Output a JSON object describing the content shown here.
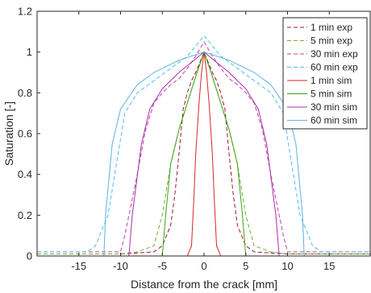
{
  "chart_data": {
    "type": "line",
    "title": "",
    "xlabel": "Distance from the crack [mm]",
    "ylabel": "Saturation [-]",
    "xlim": [
      -20,
      20
    ],
    "ylim": [
      0,
      1.2
    ],
    "xticks": [
      -15,
      -10,
      -5,
      0,
      5,
      10,
      15
    ],
    "xtick_labels": [
      "-15",
      "-10",
      "-5",
      "0",
      "5",
      "10",
      "15"
    ],
    "yticks": [
      0,
      0.2,
      0.4,
      0.6,
      0.8,
      1,
      1.2
    ],
    "ytick_labels": [
      "0",
      "0.2",
      "0.4",
      "0.6",
      "0.8",
      "1",
      "1.2"
    ],
    "grid": false,
    "legend_position": "top-right",
    "series": [
      {
        "name": "1 min exp",
        "color": "#a2142f",
        "dash": "dashed",
        "points": [
          [
            -20,
            0.01
          ],
          [
            -15,
            0.01
          ],
          [
            -10,
            0.01
          ],
          [
            -8,
            0.015
          ],
          [
            -6,
            0.02
          ],
          [
            -5,
            0.05
          ],
          [
            -4,
            0.15
          ],
          [
            -3.5,
            0.3
          ],
          [
            -3,
            0.5
          ],
          [
            -2.5,
            0.72
          ],
          [
            -2,
            0.8
          ],
          [
            -1.5,
            0.86
          ],
          [
            -1,
            0.9
          ],
          [
            -0.5,
            0.95
          ],
          [
            0,
            1.0
          ],
          [
            0.5,
            0.95
          ],
          [
            1,
            0.9
          ],
          [
            1.5,
            0.86
          ],
          [
            2,
            0.8
          ],
          [
            2.5,
            0.72
          ],
          [
            3,
            0.5
          ],
          [
            3.5,
            0.3
          ],
          [
            4,
            0.15
          ],
          [
            5,
            0.05
          ],
          [
            6,
            0.02
          ],
          [
            8,
            0.015
          ],
          [
            10,
            0.01
          ],
          [
            15,
            0.01
          ],
          [
            20,
            0.01
          ]
        ]
      },
      {
        "name": "5 min exp",
        "color": "#77ac30",
        "dash": "dashed",
        "points": [
          [
            -20,
            0.01
          ],
          [
            -15,
            0.01
          ],
          [
            -10,
            0.01
          ],
          [
            -8,
            0.02
          ],
          [
            -6,
            0.05
          ],
          [
            -5,
            0.2
          ],
          [
            -4,
            0.45
          ],
          [
            -3,
            0.62
          ],
          [
            -2,
            0.75
          ],
          [
            -1,
            0.88
          ],
          [
            0,
            1.0
          ],
          [
            1,
            0.88
          ],
          [
            2,
            0.75
          ],
          [
            3,
            0.62
          ],
          [
            4,
            0.45
          ],
          [
            5,
            0.2
          ],
          [
            6,
            0.05
          ],
          [
            8,
            0.02
          ],
          [
            10,
            0.01
          ],
          [
            15,
            0.01
          ],
          [
            20,
            0.01
          ]
        ]
      },
      {
        "name": "30 min exp",
        "color": "#c040a0",
        "dash": "dashed",
        "points": [
          [
            -20,
            0.02
          ],
          [
            -15,
            0.02
          ],
          [
            -10,
            0.02
          ],
          [
            -9.5,
            0.1
          ],
          [
            -8,
            0.4
          ],
          [
            -7,
            0.62
          ],
          [
            -6,
            0.75
          ],
          [
            -5,
            0.8
          ],
          [
            -4,
            0.84
          ],
          [
            -3,
            0.87
          ],
          [
            -2,
            0.92
          ],
          [
            -1,
            0.98
          ],
          [
            0,
            1.05
          ],
          [
            1,
            0.98
          ],
          [
            2,
            0.92
          ],
          [
            3,
            0.87
          ],
          [
            4,
            0.84
          ],
          [
            5,
            0.8
          ],
          [
            6,
            0.75
          ],
          [
            7,
            0.62
          ],
          [
            8,
            0.4
          ],
          [
            9.5,
            0.1
          ],
          [
            10,
            0.02
          ],
          [
            15,
            0.02
          ],
          [
            20,
            0.02
          ]
        ]
      },
      {
        "name": "60 min exp",
        "color": "#4dbeee",
        "dash": "dashed",
        "points": [
          [
            -20,
            0.02
          ],
          [
            -14,
            0.02
          ],
          [
            -13,
            0.05
          ],
          [
            -11.5,
            0.2
          ],
          [
            -10.5,
            0.45
          ],
          [
            -9.5,
            0.7
          ],
          [
            -8,
            0.8
          ],
          [
            -6,
            0.86
          ],
          [
            -4,
            0.92
          ],
          [
            -2,
            0.98
          ],
          [
            0,
            1.08
          ],
          [
            2,
            0.98
          ],
          [
            4,
            0.92
          ],
          [
            6,
            0.86
          ],
          [
            8,
            0.8
          ],
          [
            9.5,
            0.7
          ],
          [
            10.5,
            0.45
          ],
          [
            11.5,
            0.2
          ],
          [
            13,
            0.05
          ],
          [
            14,
            0.02
          ],
          [
            20,
            0.02
          ]
        ]
      },
      {
        "name": "1 min sim",
        "color": "#d62728",
        "dash": "solid",
        "points": [
          [
            -20,
            0
          ],
          [
            -2,
            0
          ],
          [
            -1.5,
            0.05
          ],
          [
            -1.2,
            0.3
          ],
          [
            -1,
            0.5
          ],
          [
            -0.6,
            0.75
          ],
          [
            -0.3,
            0.9
          ],
          [
            0,
            1.0
          ],
          [
            0.3,
            0.9
          ],
          [
            0.6,
            0.75
          ],
          [
            1,
            0.5
          ],
          [
            1.2,
            0.3
          ],
          [
            1.5,
            0.05
          ],
          [
            2,
            0
          ],
          [
            20,
            0
          ]
        ]
      },
      {
        "name": "5 min sim",
        "color": "#3aa415",
        "dash": "solid",
        "points": [
          [
            -20,
            0
          ],
          [
            -5,
            0
          ],
          [
            -4.6,
            0.2
          ],
          [
            -4,
            0.45
          ],
          [
            -3,
            0.62
          ],
          [
            -2,
            0.75
          ],
          [
            -1,
            0.88
          ],
          [
            0,
            1.0
          ],
          [
            1,
            0.88
          ],
          [
            2,
            0.75
          ],
          [
            3,
            0.62
          ],
          [
            4,
            0.45
          ],
          [
            4.6,
            0.2
          ],
          [
            5,
            0
          ],
          [
            20,
            0
          ]
        ]
      },
      {
        "name": "30 min sim",
        "color": "#a830a8",
        "dash": "solid",
        "points": [
          [
            -20,
            0
          ],
          [
            -9,
            0
          ],
          [
            -8.6,
            0.2
          ],
          [
            -7.5,
            0.55
          ],
          [
            -6.5,
            0.72
          ],
          [
            -5,
            0.82
          ],
          [
            -3,
            0.9
          ],
          [
            -1.5,
            0.95
          ],
          [
            0,
            1.0
          ],
          [
            1.5,
            0.95
          ],
          [
            3,
            0.9
          ],
          [
            5,
            0.82
          ],
          [
            6.5,
            0.72
          ],
          [
            7.5,
            0.55
          ],
          [
            8.6,
            0.2
          ],
          [
            9,
            0
          ],
          [
            20,
            0
          ]
        ]
      },
      {
        "name": "60 min sim",
        "color": "#5fb0e0",
        "dash": "solid",
        "points": [
          [
            -20,
            0
          ],
          [
            -12,
            0
          ],
          [
            -11.8,
            0.2
          ],
          [
            -11,
            0.55
          ],
          [
            -10,
            0.72
          ],
          [
            -8,
            0.84
          ],
          [
            -6,
            0.9
          ],
          [
            -3,
            0.96
          ],
          [
            0,
            1.0
          ],
          [
            3,
            0.96
          ],
          [
            6,
            0.9
          ],
          [
            8,
            0.84
          ],
          [
            10,
            0.72
          ],
          [
            11,
            0.55
          ],
          [
            11.8,
            0.2
          ],
          [
            12,
            0
          ],
          [
            20,
            0
          ]
        ]
      }
    ]
  }
}
